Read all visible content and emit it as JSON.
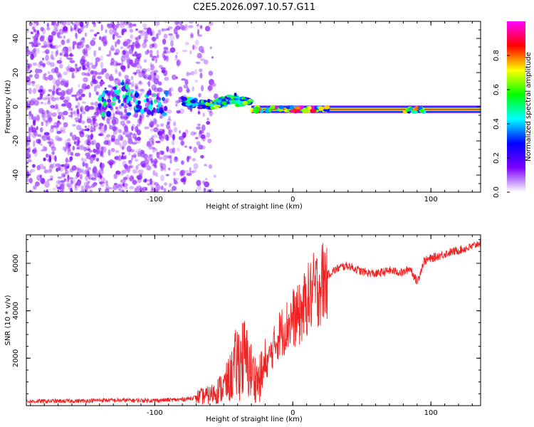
{
  "title": "C2E5.2026.097.10.57.G11",
  "chart_data": [
    {
      "type": "heatmap",
      "name": "spectrogram",
      "xlabel": "Height of straight line (km)",
      "ylabel": "Frequency (Hz)",
      "xlim": [
        -193,
        136
      ],
      "ylim": [
        -50,
        50
      ],
      "xticks": [
        -100,
        0,
        100
      ],
      "xtick_labels": [
        "-100",
        "0",
        "100"
      ],
      "yticks": [
        -40,
        -20,
        0,
        20,
        40
      ],
      "ytick_labels": [
        "-40",
        "-20",
        "0",
        "20",
        "40"
      ],
      "colorbar": {
        "label": "Normalized spectral amplitude",
        "range": [
          0,
          1
        ],
        "ticks": [
          0.0,
          0.2,
          0.4,
          0.6,
          0.8
        ],
        "tick_labels": [
          "0.0",
          "0.2",
          "0.4",
          "0.6",
          "0.8"
        ],
        "colors": [
          "#ffffff",
          "#7d00ff",
          "#0000ff",
          "#00ffff",
          "#00ff00",
          "#ffff00",
          "#ff0000",
          "#ff00ff"
        ]
      },
      "features": [
        {
          "label": "noise",
          "x_range": [
            -193,
            -70
          ],
          "freq_range": [
            -50,
            50
          ],
          "amplitude": 0.1
        },
        {
          "label": "signal-onset",
          "x_range": [
            -140,
            -90
          ],
          "freq_center": 2,
          "amplitude": 0.4
        },
        {
          "label": "signal-wander",
          "x_range": [
            -80,
            -30
          ],
          "freq_center": 3,
          "amplitude": 0.5
        },
        {
          "label": "carrier-stable",
          "x_range": [
            -30,
            136
          ],
          "freq_center": -1.5,
          "amplitude": 1.0
        },
        {
          "label": "disturbance",
          "x_range": [
            80,
            95
          ],
          "freq_center": -2,
          "amplitude": 0.6
        }
      ]
    },
    {
      "type": "line",
      "name": "snr",
      "xlabel": "Height of straight line (km)",
      "ylabel": "SNR (10 * v/v)",
      "xlim": [
        -193,
        136
      ],
      "ylim": [
        0,
        7200
      ],
      "xticks": [
        -100,
        0,
        100
      ],
      "xtick_labels": [
        "-100",
        "0",
        "100"
      ],
      "yticks": [
        2000,
        4000,
        6000
      ],
      "ytick_labels": [
        "2000",
        "4000",
        "6000"
      ],
      "color": "#ee2222",
      "series": [
        {
          "name": "SNR",
          "x": [
            -193,
            -150,
            -140,
            -100,
            -80,
            -70,
            -60,
            -50,
            -45,
            -40,
            -35,
            -30,
            -25,
            -20,
            -15,
            -10,
            -5,
            0,
            5,
            10,
            15,
            20,
            25,
            30,
            35,
            40,
            50,
            60,
            70,
            80,
            85,
            90,
            95,
            100,
            110,
            120,
            130,
            136
          ],
          "y": [
            180,
            200,
            230,
            220,
            260,
            350,
            450,
            800,
            1200,
            1900,
            2000,
            1400,
            1000,
            1600,
            2300,
            3000,
            3300,
            3700,
            3800,
            4400,
            4800,
            5100,
            5500,
            5700,
            5850,
            5900,
            5650,
            5550,
            5700,
            5600,
            5800,
            5200,
            6100,
            6200,
            6400,
            6550,
            6700,
            6900
          ]
        }
      ]
    }
  ]
}
